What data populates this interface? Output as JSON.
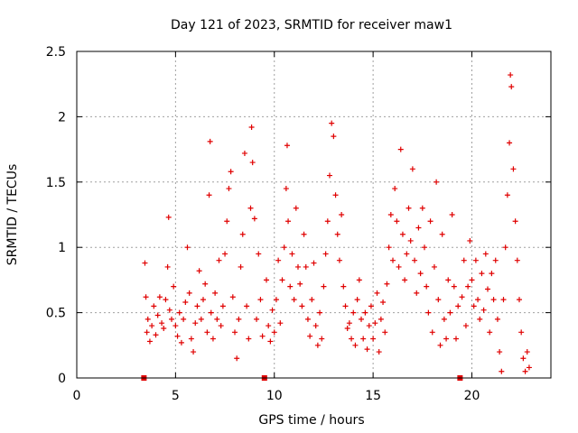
{
  "chart_data": {
    "type": "scatter",
    "title": "Day 121 of 2023, SRMTID for receiver maw1",
    "xlabel": "GPS time / hours",
    "ylabel": "SRMTID / TECUs",
    "xlim": [
      0,
      24
    ],
    "ylim": [
      0,
      2.5
    ],
    "xticks": [
      0,
      5,
      10,
      15,
      20
    ],
    "yticks": [
      0,
      0.5,
      1,
      1.5,
      2,
      2.5
    ],
    "x_tick_labels": [
      "0",
      "5",
      "10",
      "15",
      "20"
    ],
    "y_tick_labels": [
      "0",
      "0.5",
      "1",
      "1.5",
      "2",
      "2.5"
    ],
    "grid": true,
    "marker": "+",
    "series_color": "#e00000",
    "gap_markers_x": [
      3.4,
      9.5,
      19.4
    ],
    "series": [
      {
        "name": "SRMTID",
        "points": [
          [
            3.45,
            0.88
          ],
          [
            3.5,
            0.62
          ],
          [
            3.55,
            0.35
          ],
          [
            3.6,
            0.45
          ],
          [
            3.7,
            0.28
          ],
          [
            3.8,
            0.4
          ],
          [
            3.9,
            0.55
          ],
          [
            4.0,
            0.33
          ],
          [
            4.1,
            0.48
          ],
          [
            4.2,
            0.62
          ],
          [
            4.3,
            0.42
          ],
          [
            4.4,
            0.38
          ],
          [
            4.5,
            0.6
          ],
          [
            4.6,
            0.85
          ],
          [
            4.65,
            1.23
          ],
          [
            4.7,
            0.52
          ],
          [
            4.8,
            0.45
          ],
          [
            4.9,
            0.7
          ],
          [
            5.0,
            0.4
          ],
          [
            5.1,
            0.32
          ],
          [
            5.2,
            0.5
          ],
          [
            5.3,
            0.27
          ],
          [
            5.4,
            0.45
          ],
          [
            5.5,
            0.58
          ],
          [
            5.6,
            1.0
          ],
          [
            5.7,
            0.65
          ],
          [
            5.8,
            0.3
          ],
          [
            5.9,
            0.2
          ],
          [
            6.0,
            0.42
          ],
          [
            6.1,
            0.55
          ],
          [
            6.2,
            0.82
          ],
          [
            6.3,
            0.45
          ],
          [
            6.4,
            0.6
          ],
          [
            6.5,
            0.72
          ],
          [
            6.6,
            0.35
          ],
          [
            6.7,
            1.4
          ],
          [
            6.75,
            1.81
          ],
          [
            6.8,
            0.5
          ],
          [
            6.9,
            0.3
          ],
          [
            7.0,
            0.65
          ],
          [
            7.1,
            0.45
          ],
          [
            7.2,
            0.9
          ],
          [
            7.3,
            0.4
          ],
          [
            7.4,
            0.55
          ],
          [
            7.5,
            0.95
          ],
          [
            7.6,
            1.2
          ],
          [
            7.7,
            1.45
          ],
          [
            7.8,
            1.58
          ],
          [
            7.9,
            0.62
          ],
          [
            8.0,
            0.35
          ],
          [
            8.1,
            0.15
          ],
          [
            8.2,
            0.45
          ],
          [
            8.3,
            0.85
          ],
          [
            8.4,
            1.1
          ],
          [
            8.5,
            1.72
          ],
          [
            8.6,
            0.55
          ],
          [
            8.7,
            0.3
          ],
          [
            8.8,
            1.3
          ],
          [
            8.85,
            1.92
          ],
          [
            8.9,
            1.65
          ],
          [
            9.0,
            1.22
          ],
          [
            9.1,
            0.45
          ],
          [
            9.2,
            0.95
          ],
          [
            9.3,
            0.6
          ],
          [
            9.4,
            0.32
          ],
          [
            9.6,
            0.75
          ],
          [
            9.7,
            0.4
          ],
          [
            9.8,
            0.28
          ],
          [
            9.9,
            0.52
          ],
          [
            10.0,
            0.35
          ],
          [
            10.1,
            0.6
          ],
          [
            10.2,
            0.9
          ],
          [
            10.3,
            0.42
          ],
          [
            10.4,
            0.75
          ],
          [
            10.5,
            1.0
          ],
          [
            10.6,
            1.45
          ],
          [
            10.65,
            1.78
          ],
          [
            10.7,
            1.2
          ],
          [
            10.8,
            0.7
          ],
          [
            10.9,
            0.95
          ],
          [
            11.0,
            0.6
          ],
          [
            11.1,
            1.3
          ],
          [
            11.2,
            0.85
          ],
          [
            11.3,
            0.72
          ],
          [
            11.4,
            0.55
          ],
          [
            11.5,
            1.1
          ],
          [
            11.6,
            0.85
          ],
          [
            11.7,
            0.45
          ],
          [
            11.8,
            0.32
          ],
          [
            11.9,
            0.6
          ],
          [
            12.0,
            0.88
          ],
          [
            12.1,
            0.4
          ],
          [
            12.2,
            0.25
          ],
          [
            12.3,
            0.5
          ],
          [
            12.4,
            0.3
          ],
          [
            12.5,
            0.7
          ],
          [
            12.6,
            0.95
          ],
          [
            12.7,
            1.2
          ],
          [
            12.8,
            1.55
          ],
          [
            12.9,
            1.95
          ],
          [
            13.0,
            1.85
          ],
          [
            13.1,
            1.4
          ],
          [
            13.2,
            1.1
          ],
          [
            13.3,
            0.9
          ],
          [
            13.4,
            1.25
          ],
          [
            13.5,
            0.7
          ],
          [
            13.6,
            0.55
          ],
          [
            13.7,
            0.38
          ],
          [
            13.8,
            0.42
          ],
          [
            13.9,
            0.3
          ],
          [
            14.0,
            0.5
          ],
          [
            14.1,
            0.25
          ],
          [
            14.2,
            0.6
          ],
          [
            14.3,
            0.75
          ],
          [
            14.4,
            0.45
          ],
          [
            14.5,
            0.3
          ],
          [
            14.6,
            0.5
          ],
          [
            14.7,
            0.22
          ],
          [
            14.8,
            0.4
          ],
          [
            14.9,
            0.55
          ],
          [
            15.0,
            0.3
          ],
          [
            15.1,
            0.42
          ],
          [
            15.2,
            0.65
          ],
          [
            15.3,
            0.2
          ],
          [
            15.4,
            0.45
          ],
          [
            15.5,
            0.58
          ],
          [
            15.6,
            0.35
          ],
          [
            15.7,
            0.72
          ],
          [
            15.8,
            1.0
          ],
          [
            15.9,
            1.25
          ],
          [
            16.0,
            0.9
          ],
          [
            16.1,
            1.45
          ],
          [
            16.2,
            1.2
          ],
          [
            16.3,
            0.85
          ],
          [
            16.4,
            1.75
          ],
          [
            16.5,
            1.1
          ],
          [
            16.6,
            0.75
          ],
          [
            16.7,
            0.95
          ],
          [
            16.8,
            1.3
          ],
          [
            16.9,
            1.05
          ],
          [
            17.0,
            1.6
          ],
          [
            17.1,
            0.9
          ],
          [
            17.2,
            0.65
          ],
          [
            17.3,
            1.15
          ],
          [
            17.4,
            0.8
          ],
          [
            17.5,
            1.3
          ],
          [
            17.6,
            1.0
          ],
          [
            17.7,
            0.7
          ],
          [
            17.8,
            0.5
          ],
          [
            17.9,
            1.2
          ],
          [
            18.0,
            0.35
          ],
          [
            18.1,
            0.85
          ],
          [
            18.2,
            1.5
          ],
          [
            18.3,
            0.6
          ],
          [
            18.4,
            0.25
          ],
          [
            18.5,
            1.1
          ],
          [
            18.6,
            0.45
          ],
          [
            18.7,
            0.3
          ],
          [
            18.8,
            0.75
          ],
          [
            18.9,
            0.5
          ],
          [
            19.0,
            1.25
          ],
          [
            19.1,
            0.7
          ],
          [
            19.2,
            0.3
          ],
          [
            19.3,
            0.55
          ],
          [
            19.5,
            0.62
          ],
          [
            19.6,
            0.9
          ],
          [
            19.7,
            0.4
          ],
          [
            19.8,
            0.7
          ],
          [
            19.9,
            1.05
          ],
          [
            20.0,
            0.75
          ],
          [
            20.1,
            0.55
          ],
          [
            20.2,
            0.9
          ],
          [
            20.3,
            0.6
          ],
          [
            20.4,
            0.45
          ],
          [
            20.5,
            0.8
          ],
          [
            20.6,
            0.52
          ],
          [
            20.7,
            0.95
          ],
          [
            20.8,
            0.68
          ],
          [
            20.9,
            0.35
          ],
          [
            21.0,
            0.8
          ],
          [
            21.1,
            0.6
          ],
          [
            21.2,
            0.9
          ],
          [
            21.3,
            0.45
          ],
          [
            21.4,
            0.2
          ],
          [
            21.5,
            0.05
          ],
          [
            21.6,
            0.6
          ],
          [
            21.7,
            1.0
          ],
          [
            21.8,
            1.4
          ],
          [
            21.9,
            1.8
          ],
          [
            21.95,
            2.32
          ],
          [
            22.0,
            2.23
          ],
          [
            22.1,
            1.6
          ],
          [
            22.2,
            1.2
          ],
          [
            22.3,
            0.9
          ],
          [
            22.4,
            0.6
          ],
          [
            22.5,
            0.35
          ],
          [
            22.6,
            0.15
          ],
          [
            22.7,
            0.05
          ],
          [
            22.8,
            0.2
          ],
          [
            22.9,
            0.08
          ]
        ]
      }
    ]
  }
}
